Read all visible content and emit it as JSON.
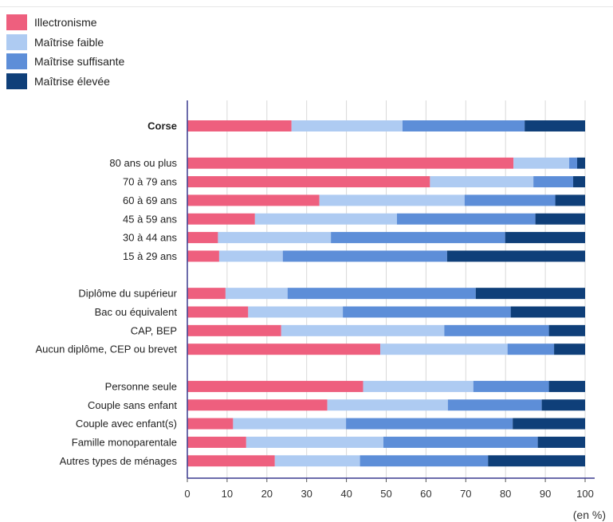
{
  "legend": [
    {
      "label": "Illectronisme",
      "color": "#ee5f7e"
    },
    {
      "label": "Maîtrise faible",
      "color": "#aecbf2"
    },
    {
      "label": "Maîtrise suffisante",
      "color": "#5d8ed8"
    },
    {
      "label": "Maîtrise élevée",
      "color": "#0f3f79"
    }
  ],
  "chart_data": {
    "type": "bar",
    "orientation": "horizontal",
    "stacked": true,
    "unit_label": "(en %)",
    "xlim": [
      0,
      100
    ],
    "xticks": [
      0,
      10,
      20,
      30,
      40,
      50,
      60,
      70,
      80,
      90,
      100
    ],
    "grid": true,
    "legend_position": "top-left",
    "categories": [
      "Corse",
      "80 ans ou plus",
      "70 à 79 ans",
      "60 à 69 ans",
      "45 à 59 ans",
      "30 à 44 ans",
      "15 à 29 ans",
      "Diplôme du supérieur",
      "Bac ou équivalent",
      "CAP, BEP",
      "Aucun diplôme, CEP ou brevet",
      "Personne seule",
      "Couple sans enfant",
      "Couple avec enfant(s)",
      "Famille monoparentale",
      "Autres types de ménages"
    ],
    "bold_categories": [
      "Corse"
    ],
    "series": [
      {
        "name": "Illectronisme",
        "values": [
          26.2,
          82,
          61,
          33.2,
          17,
          7.7,
          8,
          9.6,
          15.3,
          23.6,
          48.5,
          44.2,
          35.2,
          11.5,
          14.8,
          22
        ]
      },
      {
        "name": "Maîtrise faible",
        "values": [
          27.9,
          14,
          26,
          36.5,
          35.7,
          28.4,
          16,
          15.6,
          23.8,
          41,
          32,
          27.7,
          30.3,
          28.4,
          34.5,
          21.4
        ]
      },
      {
        "name": "Maîtrise suffisante",
        "values": [
          30.7,
          2,
          10,
          22.8,
          34.8,
          43.8,
          41.3,
          47.3,
          42.2,
          26.3,
          11.7,
          19,
          23.6,
          41.9,
          38.8,
          32.2
        ]
      },
      {
        "name": "Maîtrise élevée",
        "values": [
          15.2,
          2,
          3,
          7.5,
          12.5,
          20.1,
          34.7,
          27.5,
          18.7,
          9.1,
          7.8,
          9.1,
          10.9,
          18.2,
          11.9,
          24.4
        ]
      }
    ]
  }
}
